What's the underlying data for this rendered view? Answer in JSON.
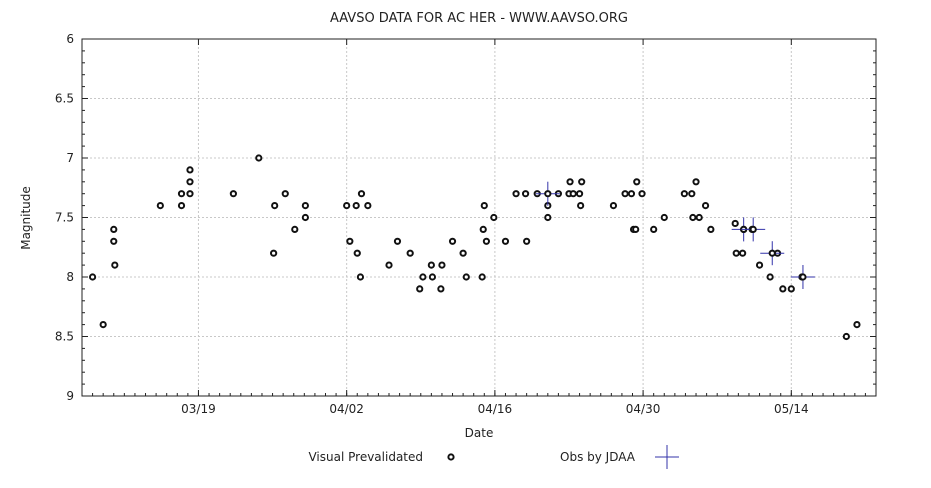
{
  "chart_data": {
    "type": "scatter",
    "title": "AAVSO DATA FOR AC HER - WWW.AAVSO.ORG",
    "xlabel": "Date",
    "ylabel": "Magnitude",
    "x_tick_labels": [
      "03/19",
      "04/02",
      "04/16",
      "04/30",
      "05/14"
    ],
    "x_tick_days": [
      19,
      33,
      47,
      61,
      75
    ],
    "xlim_days": [
      8,
      83
    ],
    "y_ticks": [
      "6",
      "6.5",
      "7",
      "7.5",
      "8",
      "8.5",
      "9"
    ],
    "ylim": [
      9,
      6
    ],
    "y_inverted": true,
    "grid": true,
    "legend_placement": "bottom",
    "series": [
      {
        "name": "Visual Prevalidated",
        "marker": "open-circle",
        "color": "#111111",
        "points": [
          [
            9.0,
            8.0
          ],
          [
            10.0,
            8.4
          ],
          [
            11.0,
            7.6
          ],
          [
            11.0,
            7.7
          ],
          [
            11.1,
            7.9
          ],
          [
            15.4,
            7.4
          ],
          [
            17.4,
            7.4
          ],
          [
            17.4,
            7.3
          ],
          [
            18.2,
            7.1
          ],
          [
            18.2,
            7.2
          ],
          [
            18.2,
            7.3
          ],
          [
            22.3,
            7.3
          ],
          [
            24.7,
            7.0
          ],
          [
            26.1,
            7.8
          ],
          [
            26.2,
            7.4
          ],
          [
            27.2,
            7.3
          ],
          [
            28.1,
            7.6
          ],
          [
            29.1,
            7.4
          ],
          [
            29.1,
            7.5
          ],
          [
            33.0,
            7.4
          ],
          [
            33.3,
            7.7
          ],
          [
            33.9,
            7.4
          ],
          [
            34.0,
            7.8
          ],
          [
            34.3,
            8.0
          ],
          [
            34.4,
            7.3
          ],
          [
            35.0,
            7.4
          ],
          [
            37.0,
            7.9
          ],
          [
            37.8,
            7.7
          ],
          [
            39.0,
            7.8
          ],
          [
            39.9,
            8.1
          ],
          [
            40.2,
            8.0
          ],
          [
            41.0,
            7.9
          ],
          [
            41.1,
            8.0
          ],
          [
            41.9,
            8.1
          ],
          [
            42.0,
            7.9
          ],
          [
            43.0,
            7.7
          ],
          [
            44.0,
            7.8
          ],
          [
            44.3,
            8.0
          ],
          [
            45.8,
            8.0
          ],
          [
            45.9,
            7.6
          ],
          [
            46.0,
            7.4
          ],
          [
            46.2,
            7.7
          ],
          [
            46.9,
            7.5
          ],
          [
            48.0,
            7.7
          ],
          [
            49.0,
            7.3
          ],
          [
            49.9,
            7.3
          ],
          [
            50.0,
            7.7
          ],
          [
            51.0,
            7.3
          ],
          [
            52.0,
            7.5
          ],
          [
            52.0,
            7.4
          ],
          [
            53.0,
            7.3
          ],
          [
            54.0,
            7.3
          ],
          [
            54.1,
            7.2
          ],
          [
            54.4,
            7.3
          ],
          [
            55.0,
            7.3
          ],
          [
            55.1,
            7.4
          ],
          [
            55.2,
            7.2
          ],
          [
            58.2,
            7.4
          ],
          [
            59.3,
            7.3
          ],
          [
            59.9,
            7.3
          ],
          [
            60.1,
            7.6
          ],
          [
            60.3,
            7.6
          ],
          [
            60.4,
            7.2
          ],
          [
            60.9,
            7.3
          ],
          [
            62.0,
            7.6
          ],
          [
            63.0,
            7.5
          ],
          [
            64.9,
            7.3
          ],
          [
            65.6,
            7.3
          ],
          [
            65.7,
            7.5
          ],
          [
            66.0,
            7.2
          ],
          [
            66.3,
            7.5
          ],
          [
            66.9,
            7.4
          ],
          [
            67.4,
            7.6
          ],
          [
            69.7,
            7.55
          ],
          [
            69.8,
            7.8
          ],
          [
            70.4,
            7.8
          ],
          [
            70.5,
            7.6
          ],
          [
            71.3,
            7.6
          ],
          [
            72.0,
            7.9
          ],
          [
            73.0,
            8.0
          ],
          [
            73.7,
            7.8
          ],
          [
            74.2,
            8.1
          ],
          [
            75.0,
            8.1
          ],
          [
            76.0,
            8.0
          ],
          [
            80.2,
            8.5
          ],
          [
            81.2,
            8.4
          ]
        ]
      },
      {
        "name": "Obs by JDAA",
        "marker": "cross-error",
        "color": "#3333aa",
        "points": [
          [
            52.0,
            7.3
          ],
          [
            70.5,
            7.6
          ],
          [
            71.4,
            7.6
          ],
          [
            73.2,
            7.8
          ],
          [
            76.1,
            8.0
          ]
        ]
      }
    ]
  }
}
